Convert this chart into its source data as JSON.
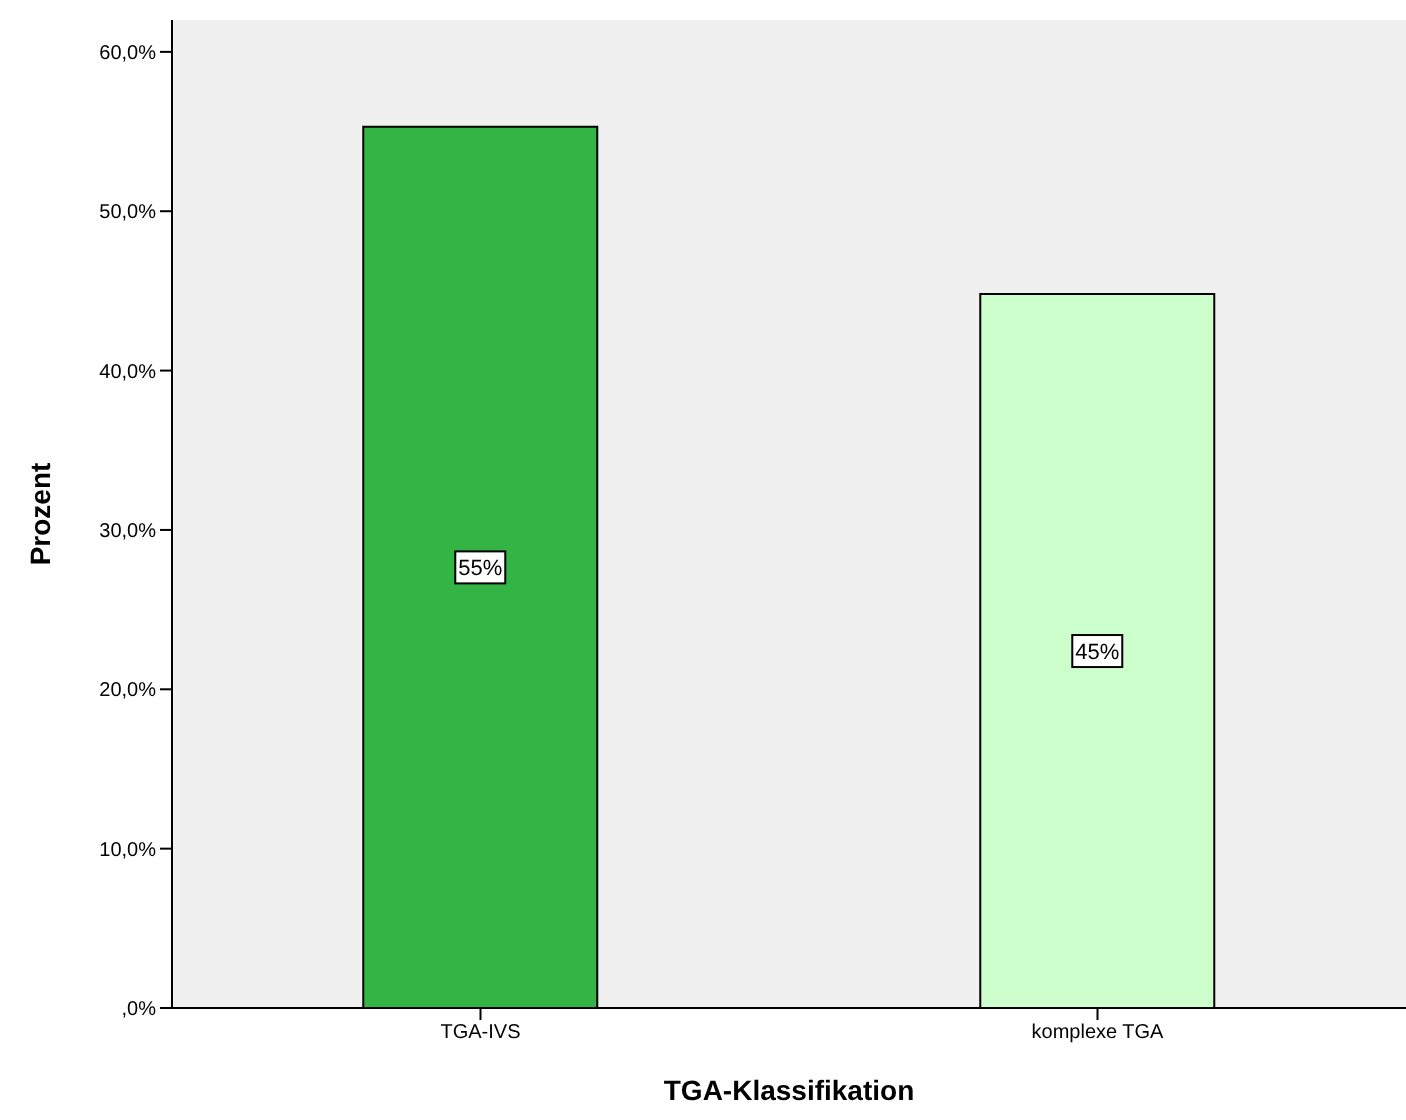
{
  "chart_data": {
    "type": "bar",
    "xlabel": "TGA-Klassifikation",
    "ylabel": "Prozent",
    "categories": [
      "TGA-IVS",
      "komplexe TGA"
    ],
    "values": [
      55.3,
      44.8
    ],
    "colors": [
      "#33b444",
      "#ccffcc"
    ],
    "value_labels": [
      "55%",
      "45%"
    ],
    "ylim": [
      0,
      62
    ],
    "yticks": [
      {
        "value": 0,
        "label": ",0%"
      },
      {
        "value": 10,
        "label": "10,0%"
      },
      {
        "value": 20,
        "label": "20,0%"
      },
      {
        "value": 30,
        "label": "30,0%"
      },
      {
        "value": 40,
        "label": "40,0%"
      },
      {
        "value": 50,
        "label": "50,0%"
      },
      {
        "value": 60,
        "label": "60,0%"
      }
    ],
    "grid": false
  }
}
